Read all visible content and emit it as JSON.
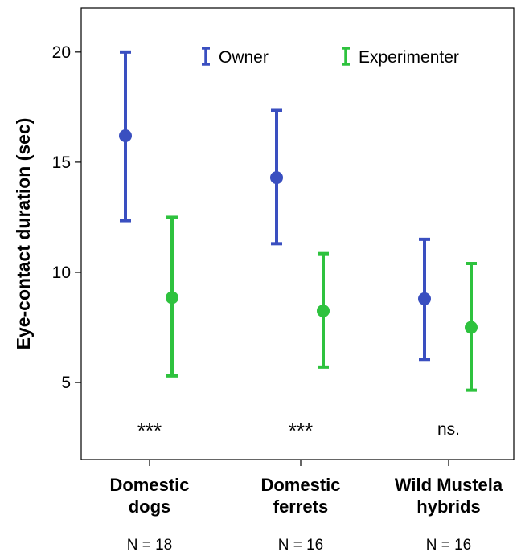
{
  "chart_data": {
    "type": "scatter",
    "subtype": "error-bar",
    "ylabel": "Eye-contact duration (sec)",
    "xlabel": "",
    "ylim": [
      1.5,
      22
    ],
    "yticks": [
      "5",
      "10",
      "15",
      "20"
    ],
    "ytick_values": [
      5,
      10,
      15,
      20
    ],
    "categories": [
      [
        "Domestic",
        "dogs"
      ],
      [
        "Domestic",
        "ferrets"
      ],
      [
        "Wild Mustela",
        "hybrids"
      ]
    ],
    "sample_sizes": [
      "N = 18",
      "N = 16",
      "N = 16"
    ],
    "significance": [
      "***",
      "***",
      "ns."
    ],
    "legend_placement": "top-right",
    "grid": false,
    "series": [
      {
        "name": "Owner",
        "color": "#3a4fc0",
        "values": [
          16.2,
          14.3,
          8.8
        ],
        "lower": [
          12.35,
          11.3,
          6.05
        ],
        "upper": [
          20.0,
          17.35,
          11.5
        ]
      },
      {
        "name": "Experimenter",
        "color": "#2ec23e",
        "values": [
          8.85,
          8.25,
          7.5
        ],
        "lower": [
          5.3,
          5.7,
          4.65
        ],
        "upper": [
          12.5,
          10.85,
          10.4
        ]
      }
    ]
  }
}
